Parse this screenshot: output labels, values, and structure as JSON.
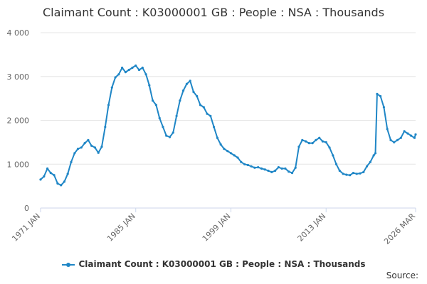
{
  "title": "Claimant Count : K03000001 GB : People : NSA : Thousands",
  "legend_label": "Claimant Count : K03000001 GB : People : NSA : Thousands",
  "source_label": "Source:",
  "colors": {
    "series": "#1f86c6",
    "grid": "#e6e6e6",
    "axis": "#ccd6eb",
    "text": "#666666"
  },
  "chart_data": {
    "type": "line",
    "title": "Claimant Count : K03000001 GB : People : NSA : Thousands",
    "xlabel": "",
    "ylabel": "",
    "xlim": [
      "1971-01",
      "2026-03"
    ],
    "ylim": [
      0,
      4000
    ],
    "yticks": [
      0,
      1000,
      2000,
      3000,
      4000
    ],
    "ytick_labels": [
      "0",
      "1 000",
      "2 000",
      "3 000",
      "4 000"
    ],
    "xtick_labels": [
      "1971 JAN",
      "1985 JAN",
      "1999 JAN",
      "2013 JAN",
      "2026 MAR"
    ],
    "grid": true,
    "legend_position": "bottom",
    "series": [
      {
        "name": "Claimant Count : K03000001 GB : People : NSA : Thousands",
        "x": [
          "1971-01",
          "1971-07",
          "1972-01",
          "1972-07",
          "1973-01",
          "1973-07",
          "1974-01",
          "1974-07",
          "1975-01",
          "1975-07",
          "1976-01",
          "1976-07",
          "1977-01",
          "1977-07",
          "1978-01",
          "1978-07",
          "1979-01",
          "1979-07",
          "1980-01",
          "1980-07",
          "1981-01",
          "1981-07",
          "1982-01",
          "1982-07",
          "1983-01",
          "1983-07",
          "1984-01",
          "1984-07",
          "1985-01",
          "1985-07",
          "1986-01",
          "1986-07",
          "1987-01",
          "1987-07",
          "1988-01",
          "1988-07",
          "1989-01",
          "1989-07",
          "1990-01",
          "1990-07",
          "1991-01",
          "1991-07",
          "1992-01",
          "1992-07",
          "1993-01",
          "1993-07",
          "1994-01",
          "1994-07",
          "1995-01",
          "1995-07",
          "1996-01",
          "1996-07",
          "1997-01",
          "1997-07",
          "1998-01",
          "1998-07",
          "1999-01",
          "1999-07",
          "2000-01",
          "2000-07",
          "2001-01",
          "2001-07",
          "2002-01",
          "2002-07",
          "2003-01",
          "2003-07",
          "2004-01",
          "2004-07",
          "2005-01",
          "2005-07",
          "2006-01",
          "2006-07",
          "2007-01",
          "2007-07",
          "2008-01",
          "2008-07",
          "2009-01",
          "2009-07",
          "2010-01",
          "2010-07",
          "2011-01",
          "2011-07",
          "2012-01",
          "2012-07",
          "2013-01",
          "2013-07",
          "2014-01",
          "2014-07",
          "2015-01",
          "2015-07",
          "2016-01",
          "2016-07",
          "2017-01",
          "2017-07",
          "2018-01",
          "2018-07",
          "2019-01",
          "2019-07",
          "2020-01",
          "2020-04",
          "2020-07",
          "2021-01",
          "2021-07",
          "2022-01",
          "2022-07",
          "2023-01",
          "2023-07",
          "2024-01",
          "2024-07",
          "2025-01",
          "2025-07",
          "2026-01",
          "2026-03"
        ],
        "values": [
          650,
          720,
          900,
          800,
          750,
          560,
          520,
          600,
          780,
          1050,
          1250,
          1350,
          1380,
          1480,
          1550,
          1420,
          1380,
          1260,
          1400,
          1850,
          2350,
          2750,
          2980,
          3050,
          3200,
          3100,
          3150,
          3200,
          3250,
          3150,
          3200,
          3050,
          2800,
          2450,
          2350,
          2050,
          1850,
          1650,
          1620,
          1720,
          2100,
          2450,
          2680,
          2830,
          2900,
          2650,
          2550,
          2350,
          2300,
          2150,
          2100,
          1850,
          1600,
          1450,
          1350,
          1300,
          1250,
          1200,
          1150,
          1050,
          1000,
          980,
          950,
          920,
          930,
          900,
          880,
          850,
          820,
          850,
          930,
          900,
          900,
          830,
          800,
          920,
          1400,
          1550,
          1520,
          1480,
          1480,
          1550,
          1600,
          1520,
          1500,
          1380,
          1200,
          1000,
          850,
          780,
          760,
          750,
          800,
          780,
          790,
          820,
          950,
          1050,
          1200,
          1250,
          2600,
          2550,
          2300,
          1800,
          1550,
          1500,
          1550,
          1600,
          1750,
          1700,
          1650,
          1600,
          1680
        ]
      }
    ]
  }
}
